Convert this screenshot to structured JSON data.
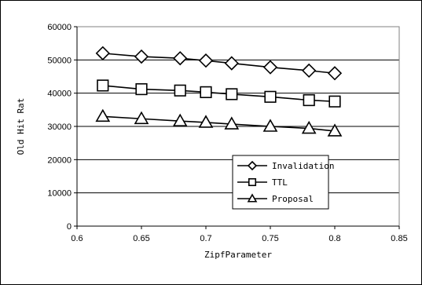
{
  "chart_data": {
    "type": "line",
    "xlabel": "ZipfParameter",
    "ylabel": "Old Hit Rat",
    "xlim": [
      0.6,
      0.85
    ],
    "ylim": [
      0,
      60000
    ],
    "x_ticks": [
      "0.6",
      "0.65",
      "0.7",
      "0.75",
      "0.8",
      "0.85"
    ],
    "y_ticks": [
      "0",
      "10000",
      "20000",
      "30000",
      "40000",
      "50000",
      "60000"
    ],
    "grid": "horizontal",
    "legend_position": "lower-right",
    "x": [
      0.62,
      0.65,
      0.68,
      0.7,
      0.72,
      0.75,
      0.78,
      0.8
    ],
    "series": [
      {
        "name": "Invalidation",
        "marker": "diamond",
        "values": [
          52000,
          51000,
          50500,
          49800,
          49000,
          47800,
          46800,
          46000
        ]
      },
      {
        "name": "TTL",
        "marker": "square",
        "values": [
          42300,
          41200,
          40800,
          40300,
          39700,
          38900,
          37900,
          37500
        ]
      },
      {
        "name": "Proposal",
        "marker": "triangle",
        "values": [
          33000,
          32300,
          31600,
          31200,
          30700,
          30000,
          29400,
          28600
        ]
      }
    ]
  }
}
